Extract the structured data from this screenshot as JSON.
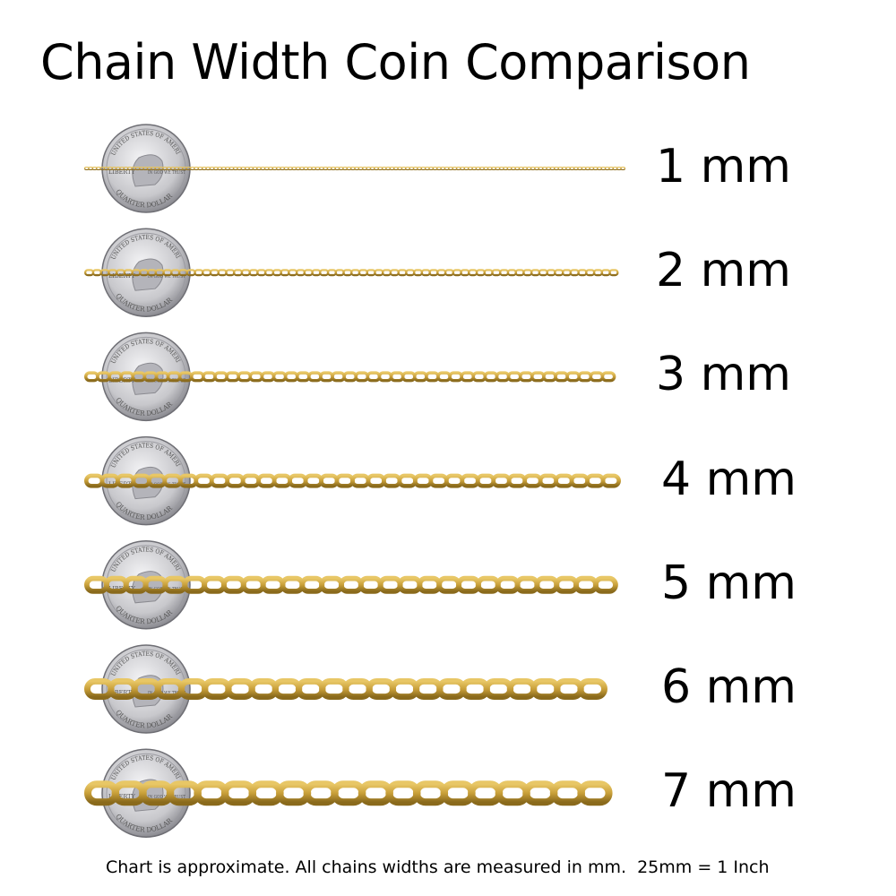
{
  "title": "Chain Width Coin Comparison",
  "rows": [
    {
      "width_mm": 1,
      "label": "1 mm"
    },
    {
      "width_mm": 2,
      "label": "2 mm"
    },
    {
      "width_mm": 3,
      "label": "3 mm"
    },
    {
      "width_mm": 4,
      "label": "4 mm"
    },
    {
      "width_mm": 5,
      "label": "5 mm"
    },
    {
      "width_mm": 6,
      "label": "6 mm"
    },
    {
      "width_mm": 7,
      "label": "7 mm"
    }
  ],
  "coin": {
    "type": "quarter-dollar",
    "lettering": [
      "UNITED STATES OF AMERICA",
      "LIBERTY",
      "IN GOD WE TRUST",
      "QUARTER DOLLAR"
    ]
  },
  "colors": {
    "chain_gold": "#c9a03a",
    "chain_dark": "#8a6a1c",
    "coin_silver": "#c8c8cc"
  },
  "footnote": "Chart is approximate. All chains widths are measured in mm.  25mm = 1 Inch"
}
